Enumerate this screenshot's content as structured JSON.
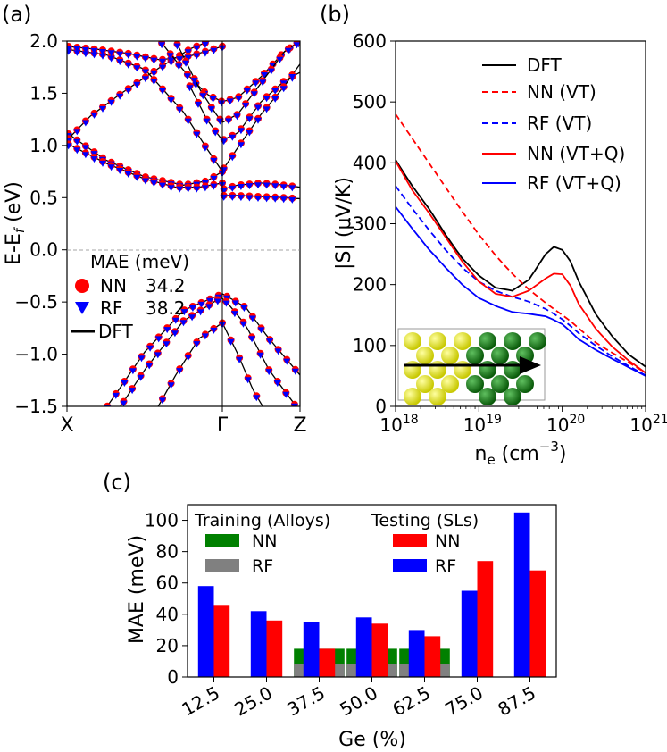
{
  "chart_data": [
    {
      "panel": "(a)",
      "type": "line",
      "title": "",
      "xlabel": "",
      "ylabel": "E-E_f (eV)",
      "ylabel_main": "E-E",
      "ylabel_sub": "f",
      "ylabel_tail": " (eV)",
      "ylim": [
        -1.5,
        2.0
      ],
      "yticks": [
        "−1.5",
        "−1.0",
        "−0.5",
        "0.0",
        "0.5",
        "1.0",
        "1.5",
        "2.0"
      ],
      "ytick_values": [
        -1.5,
        -1.0,
        -0.5,
        0.0,
        0.5,
        1.0,
        1.5,
        2.0
      ],
      "xticks": [
        "X",
        "Γ",
        "Z"
      ],
      "xtick_values": [
        0,
        1,
        1.5
      ],
      "fermi_level": 0.0,
      "legend": {
        "title": "MAE (meV)",
        "entries": [
          {
            "label": "NN",
            "value": "34.2",
            "marker": "circle",
            "color": "#ff0000"
          },
          {
            "label": "RF",
            "value": "38.2",
            "marker": "triangle-down",
            "color": "#0000ff"
          },
          {
            "label": "DFT",
            "value": "",
            "marker": "line",
            "color": "#000000"
          }
        ]
      },
      "dft_bands": [
        {
          "x": [
            0,
            0.25,
            0.5,
            0.75,
            0.9,
            1.0
          ],
          "y": [
            1.12,
            0.86,
            0.7,
            0.62,
            0.66,
            0.75
          ]
        },
        {
          "x": [
            0,
            0.25,
            0.5,
            0.75,
            0.9,
            1.0
          ],
          "y": [
            1.92,
            1.87,
            1.73,
            1.32,
            0.97,
            0.75
          ]
        },
        {
          "x": [
            0,
            0.15,
            0.35,
            0.6,
            0.8,
            1.0
          ],
          "y": [
            1.05,
            1.28,
            1.5,
            1.75,
            1.93,
            2.05
          ]
        },
        {
          "x": [
            0,
            0.2,
            0.4,
            0.6,
            0.8,
            1.0
          ],
          "y": [
            1.95,
            1.92,
            1.88,
            1.82,
            1.86,
            1.95
          ]
        },
        {
          "x": [
            0,
            0.25,
            0.5,
            0.7,
            0.85,
            1.0
          ],
          "y": [
            1.02,
            0.83,
            0.68,
            0.6,
            0.6,
            0.64
          ]
        },
        {
          "x": [
            0.6,
            0.75,
            0.9,
            1.0,
            1.1,
            1.25,
            1.4,
            1.5
          ],
          "y": [
            2.0,
            1.72,
            1.49,
            1.42,
            1.46,
            1.66,
            1.9,
            2.0
          ]
        },
        {
          "x": [
            0.7,
            0.85,
            0.95,
            1.0,
            1.1,
            1.25,
            1.4,
            1.5
          ],
          "y": [
            2.0,
            1.55,
            1.32,
            1.22,
            1.3,
            1.6,
            1.9,
            2.0
          ]
        },
        {
          "x": [
            0.78,
            0.9,
            1.0,
            1.1,
            1.25,
            1.4,
            1.5
          ],
          "y": [
            1.6,
            1.25,
            1.05,
            1.12,
            1.42,
            1.62,
            1.7
          ]
        },
        {
          "x": [
            1.0,
            1.1,
            1.25,
            1.4,
            1.5
          ],
          "y": [
            0.76,
            0.98,
            1.3,
            1.57,
            1.78
          ]
        },
        {
          "x": [
            1.0,
            1.1,
            1.25,
            1.4,
            1.5
          ],
          "y": [
            0.58,
            0.62,
            0.64,
            0.62,
            0.6
          ]
        },
        {
          "x": [
            1.0,
            1.1,
            1.25,
            1.4,
            1.5
          ],
          "y": [
            0.52,
            0.52,
            0.51,
            0.5,
            0.49
          ]
        },
        {
          "x": [
            0.25,
            0.5,
            0.75,
            1.0,
            1.15,
            1.3,
            1.5
          ],
          "y": [
            -1.52,
            -0.98,
            -0.58,
            -0.42,
            -0.55,
            -0.85,
            -1.2
          ]
        },
        {
          "x": [
            0.3,
            0.5,
            0.75,
            1.0,
            1.15,
            1.3,
            1.5
          ],
          "y": [
            -1.6,
            -1.15,
            -0.68,
            -0.45,
            -0.72,
            -1.15,
            -1.55
          ]
        },
        {
          "x": [
            0.55,
            0.7,
            0.85,
            1.0,
            1.1,
            1.2,
            1.3
          ],
          "y": [
            -1.6,
            -1.2,
            -0.85,
            -0.7,
            -1.0,
            -1.35,
            -1.6
          ]
        }
      ]
    },
    {
      "panel": "(b)",
      "type": "line",
      "title": "",
      "xlabel": "n_e (cm^-3)",
      "xlabel_main": "n",
      "xlabel_sub": "e",
      "xlabel_mid": " (cm",
      "xlabel_sup": "−3",
      "xlabel_tail": ")",
      "ylabel": "|S| (μV/K)",
      "xscale": "log",
      "xlim": [
        1e+18,
        1e+21
      ],
      "ylim": [
        0,
        600
      ],
      "xticks": [
        {
          "base": "10",
          "exp": "18"
        },
        {
          "base": "10",
          "exp": "19"
        },
        {
          "base": "10",
          "exp": "20"
        },
        {
          "base": "10",
          "exp": "21"
        }
      ],
      "xtick_exponents": [
        18,
        19,
        20,
        21
      ],
      "yticks": [
        "0",
        "100",
        "200",
        "300",
        "400",
        "500",
        "600"
      ],
      "ytick_values": [
        0,
        100,
        200,
        300,
        400,
        500,
        600
      ],
      "legend_position": "top-right",
      "x_log": [
        18,
        18.2,
        18.4,
        18.6,
        18.8,
        19.0,
        19.2,
        19.4,
        19.6,
        19.8,
        19.9,
        20.0,
        20.1,
        20.2,
        20.4,
        20.6,
        20.8,
        21.0
      ],
      "series": [
        {
          "name": "DFT",
          "color": "#000000",
          "dash": "solid",
          "values": [
            405,
            362,
            325,
            282,
            243,
            215,
            195,
            190,
            208,
            250,
            262,
            257,
            238,
            205,
            152,
            115,
            85,
            65
          ]
        },
        {
          "name": "NN (VT)",
          "color": "#ff0000",
          "dash": "dashed",
          "values": [
            480,
            440,
            400,
            360,
            320,
            282,
            248,
            218,
            192,
            170,
            160,
            150,
            140,
            128,
            105,
            88,
            72,
            55
          ]
        },
        {
          "name": "RF (VT)",
          "color": "#0000ff",
          "dash": "dashed",
          "values": [
            362,
            325,
            290,
            257,
            228,
            205,
            190,
            180,
            172,
            160,
            152,
            143,
            132,
            120,
            100,
            82,
            66,
            51
          ]
        },
        {
          "name": "NN (VT+Q)",
          "color": "#ff0000",
          "dash": "solid",
          "values": [
            403,
            355,
            318,
            278,
            238,
            205,
            185,
            180,
            190,
            210,
            218,
            217,
            198,
            168,
            128,
            98,
            75,
            55
          ]
        },
        {
          "name": "RF (VT+Q)",
          "color": "#0000ff",
          "dash": "solid",
          "values": [
            328,
            292,
            258,
            228,
            200,
            178,
            165,
            155,
            152,
            148,
            142,
            135,
            123,
            110,
            93,
            78,
            64,
            50
          ]
        }
      ],
      "inset": "alloy structure with transport direction arrow"
    },
    {
      "panel": "(c)",
      "type": "bar",
      "title": "",
      "xlabel": "Ge (%)",
      "ylabel": "MAE (meV)",
      "ylim": [
        0,
        110
      ],
      "yticks": [
        "0",
        "20",
        "40",
        "60",
        "80",
        "100"
      ],
      "ytick_values": [
        0,
        20,
        40,
        60,
        80,
        100
      ],
      "categories": [
        "12.5",
        "25.0",
        "37.5",
        "50.0",
        "62.5",
        "75.0",
        "87.5"
      ],
      "series": [
        {
          "name": "RF",
          "group": "Testing (SLs)",
          "color": "#0000ff",
          "values": [
            58,
            42,
            35,
            38,
            30,
            55,
            105
          ]
        },
        {
          "name": "NN",
          "group": "Testing (SLs)",
          "color": "#ff0000",
          "values": [
            46,
            36,
            18,
            34,
            26,
            74,
            68
          ]
        }
      ],
      "training_series": [
        {
          "name": "NN",
          "group": "Training (Alloys)",
          "color": "#008000",
          "values": [
            null,
            null,
            18,
            18,
            18,
            null,
            null
          ]
        },
        {
          "name": "RF",
          "group": "Training (Alloys)",
          "color": "#808080",
          "values": [
            null,
            null,
            8,
            8,
            8,
            null,
            null
          ]
        }
      ],
      "legend": {
        "training_title": "Training (Alloys)",
        "testing_title": "Testing (SLs)",
        "training_entries": [
          {
            "label": "NN",
            "color": "#008000"
          },
          {
            "label": "RF",
            "color": "#808080"
          }
        ],
        "testing_entries": [
          {
            "label": "NN",
            "color": "#ff0000"
          },
          {
            "label": "RF",
            "color": "#0000ff"
          }
        ]
      }
    }
  ]
}
